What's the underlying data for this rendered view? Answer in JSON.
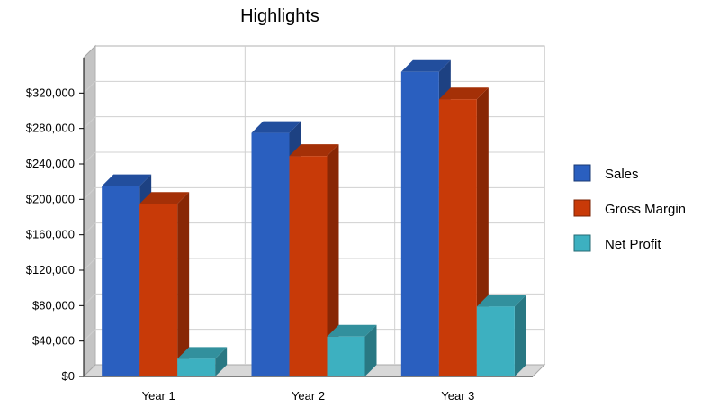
{
  "chart_data": {
    "type": "bar",
    "title": "Highlights",
    "categories": [
      "Year 1",
      "Year 2",
      "Year 3"
    ],
    "series": [
      {
        "name": "Sales",
        "values": [
          215000,
          275000,
          344000
        ],
        "color": "#2a5fbf"
      },
      {
        "name": "Gross Margin",
        "values": [
          195000,
          249000,
          313000
        ],
        "color": "#c83a08"
      },
      {
        "name": "Net Profit",
        "values": [
          20000,
          45000,
          79000
        ],
        "color": "#3db0c0"
      }
    ],
    "ylim": [
      0,
      360000
    ],
    "yticks": [
      0,
      40000,
      80000,
      120000,
      160000,
      200000,
      240000,
      280000,
      320000
    ],
    "ytick_labels": [
      "$0",
      "$40,000",
      "$80,000",
      "$120,000",
      "$160,000",
      "$200,000",
      "$240,000",
      "$280,000",
      "$320,000"
    ],
    "grid": true,
    "legend": "right",
    "style": "3d-columns"
  }
}
